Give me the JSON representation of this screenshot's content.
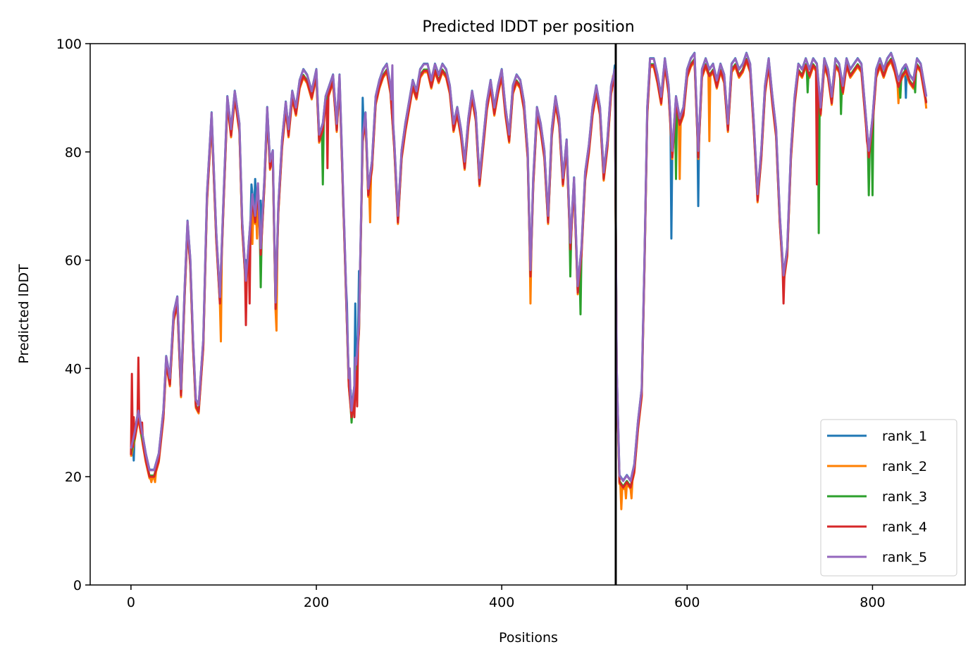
{
  "chart_data": {
    "type": "line",
    "title": "Predicted lDDT per position",
    "xlabel": "Positions",
    "ylabel": "Predicted lDDT",
    "xlim": [
      -44,
      900
    ],
    "ylim": [
      0,
      100
    ],
    "xticks": [
      0,
      200,
      400,
      600,
      800
    ],
    "yticks": [
      0,
      20,
      40,
      60,
      80,
      100
    ],
    "grid": false,
    "legend_position": "bottom-right",
    "vline_x": 523,
    "vline_color": "#000000",
    "x_max": 858,
    "base": [
      [
        0,
        25
      ],
      [
        4,
        28
      ],
      [
        8,
        32
      ],
      [
        12,
        28
      ],
      [
        16,
        24
      ],
      [
        20,
        21
      ],
      [
        25,
        21
      ],
      [
        30,
        24
      ],
      [
        35,
        32
      ],
      [
        38,
        42
      ],
      [
        42,
        38
      ],
      [
        46,
        50
      ],
      [
        50,
        53
      ],
      [
        54,
        36
      ],
      [
        58,
        55
      ],
      [
        61,
        67
      ],
      [
        64,
        60
      ],
      [
        67,
        45
      ],
      [
        70,
        34
      ],
      [
        73,
        33
      ],
      [
        78,
        45
      ],
      [
        82,
        72
      ],
      [
        87,
        87
      ],
      [
        92,
        65
      ],
      [
        96,
        53
      ],
      [
        100,
        72
      ],
      [
        104,
        90
      ],
      [
        108,
        84
      ],
      [
        112,
        91
      ],
      [
        117,
        85
      ],
      [
        120,
        67
      ],
      [
        124,
        56
      ],
      [
        128,
        65
      ],
      [
        131,
        72
      ],
      [
        134,
        68
      ],
      [
        137,
        74
      ],
      [
        140,
        62
      ],
      [
        144,
        75
      ],
      [
        147,
        88
      ],
      [
        150,
        78
      ],
      [
        153,
        80
      ],
      [
        156,
        52
      ],
      [
        159,
        70
      ],
      [
        163,
        82
      ],
      [
        167,
        89
      ],
      [
        170,
        84
      ],
      [
        174,
        91
      ],
      [
        178,
        88
      ],
      [
        182,
        93
      ],
      [
        186,
        95
      ],
      [
        190,
        94
      ],
      [
        195,
        91
      ],
      [
        200,
        95
      ],
      [
        203,
        83
      ],
      [
        207,
        85
      ],
      [
        210,
        90
      ],
      [
        214,
        92
      ],
      [
        218,
        94
      ],
      [
        222,
        85
      ],
      [
        225,
        94
      ],
      [
        229,
        72
      ],
      [
        232,
        55
      ],
      [
        235,
        38
      ],
      [
        238,
        32
      ],
      [
        242,
        38
      ],
      [
        246,
        48
      ],
      [
        250,
        83
      ],
      [
        253,
        87
      ],
      [
        256,
        73
      ],
      [
        260,
        78
      ],
      [
        264,
        90
      ],
      [
        268,
        93
      ],
      [
        272,
        95
      ],
      [
        276,
        96
      ],
      [
        280,
        92
      ],
      [
        284,
        82
      ],
      [
        288,
        68
      ],
      [
        292,
        80
      ],
      [
        296,
        85
      ],
      [
        300,
        89
      ],
      [
        304,
        93
      ],
      [
        308,
        91
      ],
      [
        312,
        95
      ],
      [
        316,
        96
      ],
      [
        320,
        96
      ],
      [
        324,
        93
      ],
      [
        328,
        96
      ],
      [
        332,
        94
      ],
      [
        336,
        96
      ],
      [
        340,
        95
      ],
      [
        344,
        92
      ],
      [
        348,
        85
      ],
      [
        352,
        88
      ],
      [
        356,
        84
      ],
      [
        360,
        78
      ],
      [
        364,
        86
      ],
      [
        368,
        91
      ],
      [
        372,
        87
      ],
      [
        376,
        75
      ],
      [
        380,
        82
      ],
      [
        384,
        89
      ],
      [
        388,
        93
      ],
      [
        392,
        88
      ],
      [
        396,
        92
      ],
      [
        400,
        95
      ],
      [
        404,
        88
      ],
      [
        408,
        83
      ],
      [
        412,
        92
      ],
      [
        416,
        94
      ],
      [
        420,
        93
      ],
      [
        424,
        89
      ],
      [
        428,
        80
      ],
      [
        431,
        58
      ],
      [
        434,
        75
      ],
      [
        438,
        88
      ],
      [
        442,
        85
      ],
      [
        446,
        80
      ],
      [
        450,
        68
      ],
      [
        454,
        84
      ],
      [
        458,
        90
      ],
      [
        462,
        86
      ],
      [
        466,
        75
      ],
      [
        470,
        82
      ],
      [
        474,
        63
      ],
      [
        478,
        75
      ],
      [
        482,
        55
      ],
      [
        486,
        62
      ],
      [
        490,
        76
      ],
      [
        494,
        81
      ],
      [
        498,
        88
      ],
      [
        502,
        92
      ],
      [
        506,
        88
      ],
      [
        510,
        76
      ],
      [
        514,
        82
      ],
      [
        518,
        92
      ],
      [
        522,
        95
      ],
      [
        524,
        40
      ],
      [
        527,
        20
      ],
      [
        531,
        19
      ],
      [
        535,
        20
      ],
      [
        539,
        19
      ],
      [
        543,
        22
      ],
      [
        547,
        30
      ],
      [
        551,
        36
      ],
      [
        554,
        60
      ],
      [
        557,
        88
      ],
      [
        560,
        97
      ],
      [
        564,
        97
      ],
      [
        568,
        94
      ],
      [
        572,
        90
      ],
      [
        576,
        97
      ],
      [
        580,
        92
      ],
      [
        584,
        80
      ],
      [
        588,
        90
      ],
      [
        592,
        86
      ],
      [
        596,
        88
      ],
      [
        600,
        95
      ],
      [
        604,
        97
      ],
      [
        608,
        98
      ],
      [
        612,
        80
      ],
      [
        616,
        95
      ],
      [
        620,
        97
      ],
      [
        624,
        95
      ],
      [
        628,
        96
      ],
      [
        632,
        93
      ],
      [
        636,
        96
      ],
      [
        640,
        94
      ],
      [
        644,
        85
      ],
      [
        648,
        96
      ],
      [
        652,
        97
      ],
      [
        656,
        95
      ],
      [
        660,
        96
      ],
      [
        664,
        98
      ],
      [
        668,
        96
      ],
      [
        672,
        85
      ],
      [
        676,
        72
      ],
      [
        680,
        80
      ],
      [
        684,
        92
      ],
      [
        688,
        97
      ],
      [
        692,
        90
      ],
      [
        696,
        84
      ],
      [
        700,
        68
      ],
      [
        704,
        57
      ],
      [
        708,
        62
      ],
      [
        712,
        80
      ],
      [
        716,
        90
      ],
      [
        720,
        96
      ],
      [
        724,
        95
      ],
      [
        728,
        97
      ],
      [
        732,
        95
      ],
      [
        736,
        97
      ],
      [
        740,
        96
      ],
      [
        744,
        88
      ],
      [
        748,
        97
      ],
      [
        752,
        95
      ],
      [
        756,
        90
      ],
      [
        760,
        97
      ],
      [
        764,
        96
      ],
      [
        768,
        92
      ],
      [
        772,
        97
      ],
      [
        776,
        95
      ],
      [
        780,
        96
      ],
      [
        784,
        97
      ],
      [
        788,
        96
      ],
      [
        792,
        88
      ],
      [
        796,
        80
      ],
      [
        800,
        86
      ],
      [
        804,
        95
      ],
      [
        808,
        97
      ],
      [
        812,
        95
      ],
      [
        816,
        97
      ],
      [
        820,
        98
      ],
      [
        824,
        96
      ],
      [
        828,
        93
      ],
      [
        832,
        95
      ],
      [
        836,
        96
      ],
      [
        840,
        94
      ],
      [
        844,
        93
      ],
      [
        848,
        97
      ],
      [
        852,
        96
      ],
      [
        856,
        92
      ],
      [
        858,
        90
      ]
    ],
    "series": [
      {
        "name": "rank_1",
        "color": "#1f77b4",
        "offset": 0.3,
        "overrides": [
          [
            1,
            24
          ],
          [
            3,
            23
          ],
          [
            124,
            60
          ],
          [
            130,
            74
          ],
          [
            134,
            75
          ],
          [
            137,
            73
          ],
          [
            140,
            71
          ],
          [
            229,
            70
          ],
          [
            233,
            52
          ],
          [
            237,
            36
          ],
          [
            242,
            52
          ],
          [
            246,
            58
          ],
          [
            250,
            90
          ],
          [
            522,
            96
          ],
          [
            583,
            64
          ],
          [
            612,
            70
          ],
          [
            836,
            90
          ]
        ]
      },
      {
        "name": "rank_2",
        "color": "#ff7f00",
        "offset": -1.3,
        "overrides": [
          [
            22,
            19
          ],
          [
            26,
            19
          ],
          [
            97,
            45
          ],
          [
            131,
            63
          ],
          [
            136,
            64
          ],
          [
            157,
            47
          ],
          [
            258,
            67
          ],
          [
            431,
            52
          ],
          [
            520,
            94
          ],
          [
            529,
            14
          ],
          [
            534,
            16
          ],
          [
            540,
            16
          ],
          [
            592,
            75
          ],
          [
            624,
            82
          ],
          [
            828,
            89
          ],
          [
            858,
            88
          ]
        ]
      },
      {
        "name": "rank_3",
        "color": "#2ca02c",
        "offset": -0.8,
        "overrides": [
          [
            140,
            55
          ],
          [
            207,
            74
          ],
          [
            238,
            30
          ],
          [
            474,
            57
          ],
          [
            485,
            50
          ],
          [
            588,
            75
          ],
          [
            730,
            91
          ],
          [
            742,
            65
          ],
          [
            766,
            87
          ],
          [
            796,
            72
          ],
          [
            800,
            72
          ],
          [
            830,
            90
          ],
          [
            846,
            91
          ]
        ]
      },
      {
        "name": "rank_4",
        "color": "#d62728",
        "offset": -1.0,
        "overrides": [
          [
            1,
            39
          ],
          [
            3,
            31
          ],
          [
            8,
            42
          ],
          [
            12,
            30
          ],
          [
            124,
            48
          ],
          [
            128,
            52
          ],
          [
            212,
            77
          ],
          [
            241,
            31
          ],
          [
            244,
            33
          ],
          [
            704,
            52
          ],
          [
            740,
            74
          ],
          [
            794,
            82
          ]
        ]
      },
      {
        "name": "rank_5",
        "color": "#9467bd",
        "offset": 0.2,
        "overrides": [
          [
            236,
            40
          ],
          [
            242,
            42
          ],
          [
            282,
            96
          ]
        ]
      }
    ]
  }
}
